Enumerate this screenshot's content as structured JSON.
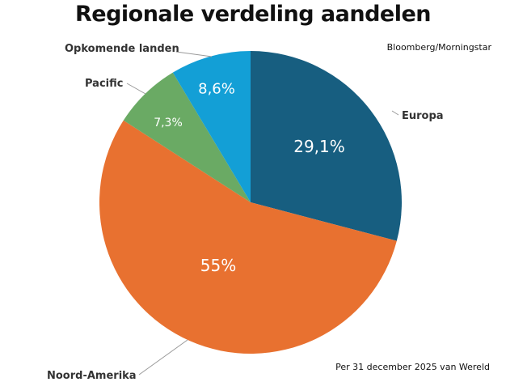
{
  "chart_data": {
    "type": "pie",
    "title": "Regionale verdeling aandelen",
    "source": "Bloomberg/Morningstar",
    "footnote": "Per 31 december 2025 van Wereld",
    "start_angle": "12 o'clock, clockwise",
    "slices": [
      {
        "name": "Europa",
        "value": 29.1,
        "label": "29,1%",
        "color": "#175e80"
      },
      {
        "name": "Noord-Amerika",
        "value": 55,
        "label": "55%",
        "color": "#e87130"
      },
      {
        "name": "Pacific",
        "value": 7.3,
        "label": "7,3%",
        "color": "#6aaa64"
      },
      {
        "name": "Opkomende landen",
        "value": 8.6,
        "label": "8,6%",
        "color": "#139fd6"
      }
    ]
  }
}
